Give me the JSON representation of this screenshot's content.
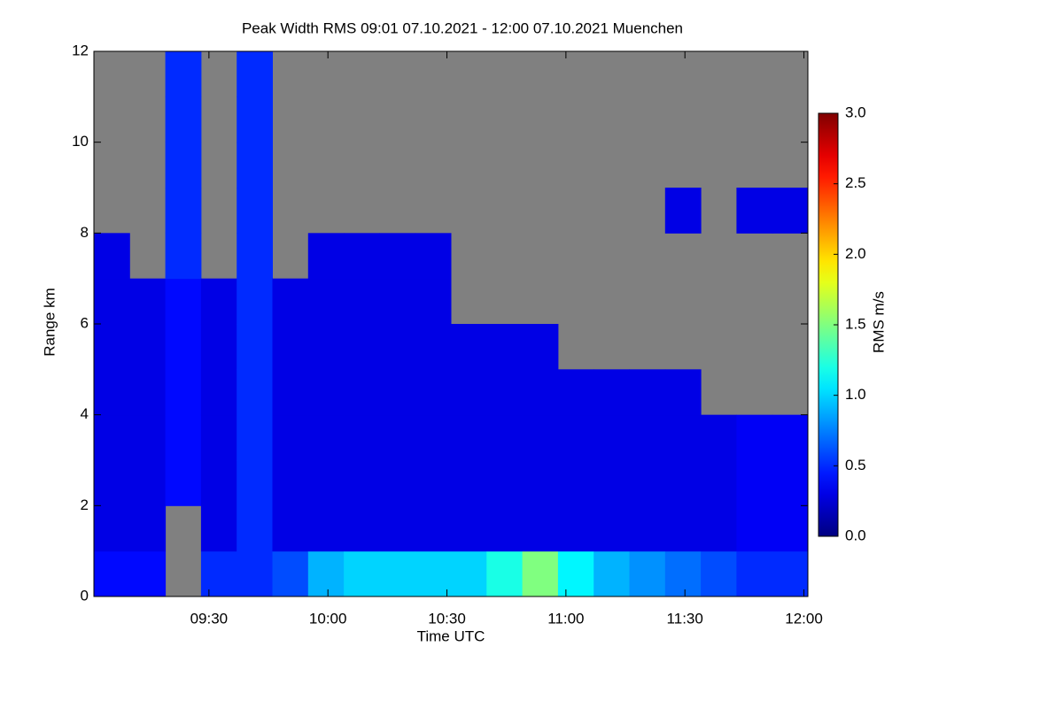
{
  "chart_data": {
    "type": "heatmap",
    "title": "Peak Width RMS   09:01 07.10.2021 - 12:00 07.10.2021 Muenchen",
    "x_label": "Time UTC",
    "y_label": "Range km",
    "colorbar_label": "RMS m/s",
    "colormap": "jet",
    "missing_color": "#808080",
    "x_bins": [
      541,
      550,
      559,
      568,
      577,
      586,
      595,
      604,
      613,
      622,
      631,
      640,
      649,
      658,
      667,
      676,
      685,
      694,
      703,
      712,
      721
    ],
    "y_bins": [
      0,
      1,
      2,
      3,
      4,
      5,
      6,
      7,
      8,
      9,
      10,
      11,
      12
    ],
    "values": [
      [
        0.4,
        0.3,
        0.3,
        0.3,
        0.3,
        0.3,
        0.3,
        0.3,
        null,
        null,
        null,
        null
      ],
      [
        0.4,
        0.3,
        0.3,
        0.3,
        0.3,
        0.3,
        0.3,
        null,
        null,
        null,
        null,
        null
      ],
      [
        null,
        null,
        0.4,
        0.4,
        0.4,
        0.4,
        0.4,
        0.5,
        0.5,
        0.5,
        0.5,
        0.5
      ],
      [
        0.5,
        0.3,
        0.3,
        0.3,
        0.3,
        0.3,
        0.3,
        null,
        null,
        null,
        null,
        null
      ],
      [
        0.5,
        0.5,
        0.5,
        0.5,
        0.5,
        0.5,
        0.5,
        0.5,
        0.5,
        0.5,
        0.5,
        0.5
      ],
      [
        0.6,
        0.3,
        0.3,
        0.3,
        0.3,
        0.3,
        0.3,
        null,
        null,
        null,
        null,
        null
      ],
      [
        0.9,
        0.3,
        0.3,
        0.3,
        0.3,
        0.3,
        0.3,
        0.3,
        null,
        null,
        null,
        null
      ],
      [
        1.0,
        0.3,
        0.3,
        0.3,
        0.3,
        0.3,
        0.3,
        0.3,
        null,
        null,
        null,
        null
      ],
      [
        1.0,
        0.3,
        0.3,
        0.3,
        0.3,
        0.3,
        0.3,
        0.3,
        null,
        null,
        null,
        null
      ],
      [
        1.0,
        0.3,
        0.3,
        0.3,
        0.3,
        0.3,
        0.3,
        0.3,
        null,
        null,
        null,
        null
      ],
      [
        1.0,
        0.3,
        0.3,
        0.3,
        0.3,
        0.3,
        null,
        null,
        null,
        null,
        null,
        null
      ],
      [
        1.2,
        0.3,
        0.3,
        0.3,
        0.3,
        0.3,
        null,
        null,
        null,
        null,
        null,
        null
      ],
      [
        1.5,
        0.3,
        0.3,
        0.3,
        0.3,
        0.3,
        null,
        null,
        null,
        null,
        null,
        null
      ],
      [
        1.1,
        0.3,
        0.3,
        0.3,
        0.3,
        null,
        null,
        null,
        null,
        null,
        null,
        null
      ],
      [
        0.9,
        0.3,
        0.3,
        0.3,
        0.3,
        null,
        null,
        null,
        null,
        null,
        null,
        null
      ],
      [
        0.8,
        0.3,
        0.3,
        0.3,
        0.3,
        null,
        null,
        null,
        null,
        null,
        null,
        null
      ],
      [
        0.7,
        0.3,
        0.3,
        0.3,
        0.3,
        null,
        null,
        null,
        0.3,
        null,
        null,
        null
      ],
      [
        0.6,
        0.3,
        0.3,
        0.3,
        null,
        null,
        null,
        null,
        null,
        null,
        null,
        null
      ],
      [
        0.5,
        0.35,
        0.35,
        0.35,
        null,
        null,
        null,
        null,
        0.3,
        null,
        null,
        null
      ],
      [
        0.5,
        0.35,
        0.35,
        0.35,
        null,
        null,
        null,
        null,
        0.3,
        null,
        null,
        null
      ]
    ],
    "xlim": [
      541,
      721
    ],
    "ylim": [
      0,
      12
    ],
    "zlim": [
      0,
      3
    ],
    "xticks": [
      {
        "value": 570,
        "label": "09:30"
      },
      {
        "value": 600,
        "label": "10:00"
      },
      {
        "value": 630,
        "label": "10:30"
      },
      {
        "value": 660,
        "label": "11:00"
      },
      {
        "value": 690,
        "label": "11:30"
      },
      {
        "value": 720,
        "label": "12:00"
      }
    ],
    "yticks": [
      0,
      2,
      4,
      6,
      8,
      10,
      12
    ],
    "zticks": [
      {
        "value": 0,
        "label": "0.0"
      },
      {
        "value": 0.5,
        "label": "0.5"
      },
      {
        "value": 1,
        "label": "1.0"
      },
      {
        "value": 1.5,
        "label": "1.5"
      },
      {
        "value": 2,
        "label": "2.0"
      },
      {
        "value": 2.5,
        "label": "2.5"
      },
      {
        "value": 3,
        "label": "3.0"
      }
    ]
  }
}
